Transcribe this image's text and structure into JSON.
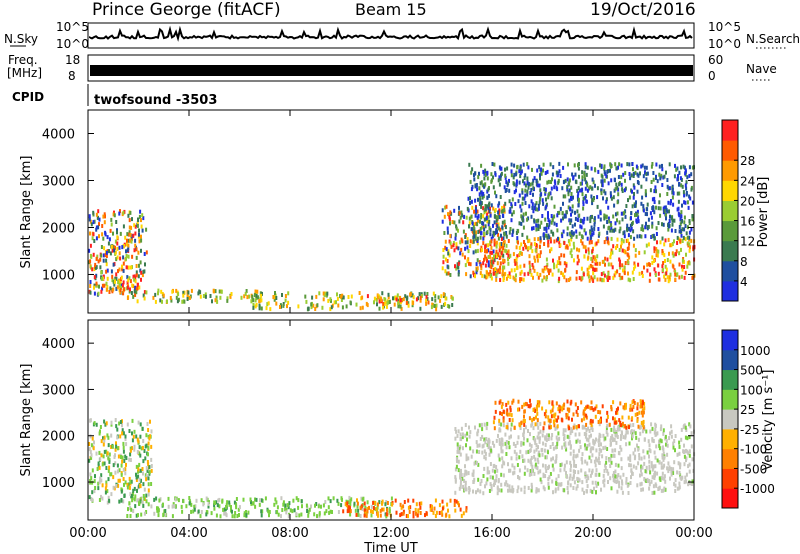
{
  "header": {
    "station": "Prince George (fitACF)",
    "beam": "Beam 15",
    "date": "19/Oct/2016"
  },
  "summary_panels": {
    "nsky": {
      "left_label": "N.Sky",
      "right_label": "N.Search",
      "ticks_left": [
        "10^5",
        "10^0"
      ],
      "ticks_right": [
        "10^5",
        "10^0"
      ]
    },
    "freq": {
      "label_line1": "Freq.",
      "label_line2": "[MHz]",
      "ticks": [
        "18",
        "8"
      ],
      "right_label": "Nave",
      "ticks_right": [
        "60",
        "0"
      ]
    },
    "cpid": {
      "label": "CPID",
      "program": "twofsound  -3503"
    }
  },
  "chart_data": [
    {
      "type": "heatmap",
      "title": "",
      "xlabel": "",
      "ylabel": "Slant Range [km]",
      "xlim": [
        0,
        24
      ],
      "ylim": [
        180,
        4500
      ],
      "x_tick_values": [
        0,
        4,
        8,
        12,
        16,
        20,
        24
      ],
      "y_tick_values": [
        1000,
        2000,
        3000,
        4000
      ],
      "y_tick_labels": [
        "1000",
        "2000",
        "3000",
        "4000"
      ],
      "colorbar": {
        "label": "Power [dB]",
        "tick_labels": [
          "4",
          "8",
          "12",
          "16",
          "20",
          "24",
          "28"
        ],
        "colors": [
          "#1f2fe0",
          "#1f4f9f",
          "#3a7a50",
          "#5a9a3a",
          "#9acd32",
          "#ffd700",
          "#ff9a00",
          "#ff5a00",
          "#ff2020"
        ]
      },
      "echo_regions": [
        {
          "t": [
            0.0,
            2.3
          ],
          "range": [
            600,
            2400
          ],
          "level": "mixed"
        },
        {
          "t": [
            0.2,
            2.0
          ],
          "range": [
            700,
            1000
          ],
          "level": "high"
        },
        {
          "t": [
            1.5,
            7.0
          ],
          "range": [
            450,
            700
          ],
          "level": "medium"
        },
        {
          "t": [
            6.5,
            14.5
          ],
          "range": [
            300,
            650
          ],
          "level": "medium"
        },
        {
          "t": [
            11.0,
            13.5
          ],
          "range": [
            400,
            600
          ],
          "level": "high"
        },
        {
          "t": [
            14.0,
            16.5
          ],
          "range": [
            1000,
            2500
          ],
          "level": "mixed"
        },
        {
          "t": [
            15.5,
            24.0
          ],
          "range": [
            900,
            1800
          ],
          "level": "high"
        },
        {
          "t": [
            15.0,
            24.0
          ],
          "range": [
            1800,
            3400
          ],
          "level": "low"
        }
      ]
    },
    {
      "type": "heatmap",
      "title": "",
      "xlabel": "Time UT",
      "ylabel": "Slant Range [km]",
      "xlim": [
        0,
        24
      ],
      "ylim": [
        180,
        4500
      ],
      "x_tick_values": [
        0,
        4,
        8,
        12,
        16,
        20,
        24
      ],
      "x_tick_labels": [
        "00:00",
        "04:00",
        "08:00",
        "12:00",
        "16:00",
        "20:00",
        "00:00"
      ],
      "y_tick_values": [
        1000,
        2000,
        3000,
        4000
      ],
      "y_tick_labels": [
        "1000",
        "2000",
        "3000",
        "4000"
      ],
      "colorbar": {
        "label": "Velocity [m s⁻¹]",
        "tick_labels": [
          "1000",
          "500",
          "100",
          "25",
          "-25",
          "-100",
          "-500",
          "-1000"
        ],
        "colors": [
          "#1f2fe0",
          "#1f4f9f",
          "#3a9a50",
          "#7ad040",
          "#c8c8c0",
          "#ffb000",
          "#ff8000",
          "#ff4000",
          "#ff1010"
        ]
      },
      "echo_regions": [
        {
          "t": [
            0.0,
            2.5
          ],
          "range": [
            600,
            2400
          ],
          "level": "mixed"
        },
        {
          "t": [
            1.5,
            12.0
          ],
          "range": [
            300,
            700
          ],
          "level": "low-positive"
        },
        {
          "t": [
            10.0,
            15.0
          ],
          "range": [
            300,
            650
          ],
          "level": "negative"
        },
        {
          "t": [
            14.5,
            24.0
          ],
          "range": [
            800,
            2300
          ],
          "level": "near-zero"
        },
        {
          "t": [
            16.0,
            22.0
          ],
          "range": [
            2200,
            2800
          ],
          "level": "negative"
        }
      ]
    }
  ]
}
